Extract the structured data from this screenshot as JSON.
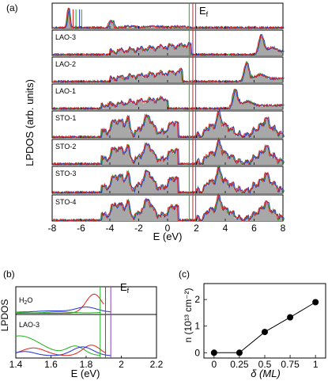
{
  "panel_labels": {
    "a": "(a)",
    "b": "(b)",
    "c": "(c)"
  },
  "colors": {
    "fill": "#a8a8a8",
    "red": "#e0201c",
    "green": "#20b020",
    "blue": "#2030d0",
    "purple": "#8a3cc0"
  },
  "chart_data": [
    {
      "type": "area",
      "panel": "(a)",
      "ylabel": "LPDOS (arb. units)",
      "xlabel": "E (eV)",
      "xlim": [
        -8,
        8
      ],
      "x_ticks": [
        "-8",
        "-6",
        "-4",
        "-2",
        "0",
        "2",
        "4",
        "6",
        "8"
      ],
      "fermi_label": "E",
      "fermi_sub": "f",
      "fermi_levels": [
        1.5,
        1.75,
        1.95
      ],
      "layers": [
        "",
        "LAO-3",
        "LAO-2",
        "LAO-1",
        "STO-1",
        "STO-2",
        "STO-3",
        "STO-4"
      ]
    },
    {
      "type": "line",
      "panel": "(b)",
      "ylabel": "LPDOS",
      "xlabel": "E (eV)",
      "xlim": [
        1.4,
        2.2
      ],
      "x_ticks": [
        "1.4",
        "1.6",
        "1.8",
        "2",
        "2.2"
      ],
      "fermi_label": "E",
      "fermi_sub": "f",
      "fermi_levels": [
        1.88,
        1.91,
        1.94
      ],
      "layers": [
        {
          "label_main": "H",
          "label_sub": "2",
          "label_tail": "O"
        },
        {
          "label_main": "LAO-3",
          "label_sub": "",
          "label_tail": ""
        }
      ]
    },
    {
      "type": "line",
      "panel": "(c)",
      "xlabel": "δ (ML)",
      "ylabel": "n (10¹³ cm⁻²)",
      "xlim": [
        -0.1,
        1.1
      ],
      "ylim": [
        -0.2,
        2.6
      ],
      "x_ticks": [
        "0",
        "0.25",
        "0.5",
        "0.75",
        "1"
      ],
      "y_ticks": [
        "0",
        "1",
        "2"
      ],
      "x": [
        0,
        0.25,
        0.5,
        0.75,
        1
      ],
      "y": [
        0,
        0,
        0.78,
        1.33,
        1.9
      ]
    }
  ]
}
